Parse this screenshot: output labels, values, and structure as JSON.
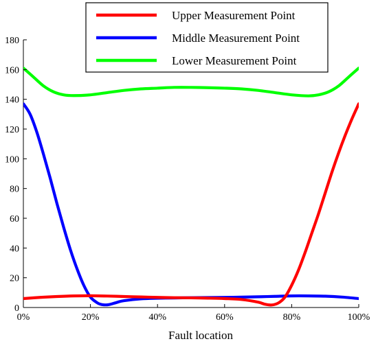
{
  "chart_data": {
    "type": "line",
    "title": "",
    "xlabel": "Fault location",
    "ylabel": "",
    "x_ticks": [
      "0%",
      "20%",
      "40%",
      "60%",
      "80%",
      "100%"
    ],
    "y_ticks": [
      "0",
      "20",
      "40",
      "60",
      "80",
      "100",
      "120",
      "140",
      "160",
      "180"
    ],
    "xlim": [
      0,
      100
    ],
    "ylim": [
      0,
      180
    ],
    "grid": false,
    "legend_position": "top-center",
    "series": [
      {
        "name": "Upper Measurement Point",
        "color": "#ff0000",
        "x": [
          0,
          5,
          10,
          15,
          20,
          25,
          30,
          35,
          40,
          45,
          50,
          55,
          60,
          65,
          70,
          72,
          74,
          76,
          78,
          80,
          82,
          84,
          86,
          88,
          90,
          92,
          94,
          96,
          98,
          100
        ],
        "y": [
          6,
          6.8,
          7.4,
          7.8,
          7.9,
          7.7,
          7.4,
          7.1,
          6.8,
          6.6,
          6.5,
          6.3,
          6,
          5.4,
          3.6,
          2.2,
          1.7,
          3,
          7,
          15,
          25,
          37,
          50,
          63,
          77,
          91,
          104,
          116,
          127,
          137
        ]
      },
      {
        "name": "Middle Measurement Point",
        "color": "#0000ff",
        "x": [
          0,
          2,
          4,
          6,
          8,
          10,
          12,
          14,
          16,
          18,
          20,
          22,
          23,
          24,
          25,
          26,
          28,
          30,
          35,
          40,
          45,
          50,
          55,
          60,
          65,
          70,
          75,
          80,
          85,
          90,
          95,
          100
        ],
        "y": [
          137,
          130,
          118,
          103,
          87,
          70,
          54,
          39,
          26,
          15,
          7,
          3.2,
          2.2,
          1.8,
          1.8,
          2.2,
          3.5,
          4.6,
          5.8,
          6.2,
          6.4,
          6.6,
          6.7,
          6.8,
          7,
          7.2,
          7.5,
          7.8,
          7.8,
          7.6,
          7,
          6
        ]
      },
      {
        "name": "Lower Measurement Point",
        "color": "#00ff00",
        "x": [
          0,
          3,
          6,
          9,
          12,
          15,
          20,
          25,
          30,
          35,
          40,
          45,
          50,
          55,
          60,
          65,
          70,
          75,
          80,
          85,
          88,
          91,
          94,
          97,
          100
        ],
        "y": [
          161,
          155,
          149,
          145,
          143,
          142.5,
          143,
          144.5,
          146,
          147,
          147.5,
          148,
          148,
          147.8,
          147.5,
          147,
          146,
          144.5,
          143,
          142.3,
          143,
          145,
          149,
          155,
          161
        ]
      }
    ]
  }
}
